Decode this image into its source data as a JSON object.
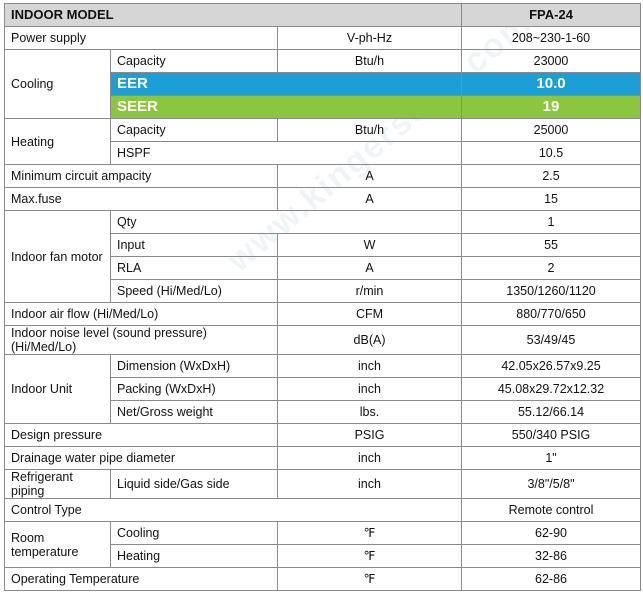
{
  "header": {
    "model_label": "INDOOR MODEL",
    "model_value": "FPA-24"
  },
  "rows": {
    "power_supply": {
      "label": "Power supply",
      "unit": "V-ph-Hz",
      "value": "208~230-1-60"
    },
    "cooling": {
      "label": "Cooling",
      "capacity": {
        "label": "Capacity",
        "unit": "Btu/h",
        "value": "23000"
      },
      "eer": {
        "label": "EER",
        "value": "10.0"
      },
      "seer": {
        "label": "SEER",
        "value": "19"
      }
    },
    "heating": {
      "label": "Heating",
      "capacity": {
        "label": "Capacity",
        "unit": "Btu/h",
        "value": "25000"
      },
      "hspf": {
        "label": "HSPF",
        "value": "10.5"
      }
    },
    "min_circuit": {
      "label": "Minimum circuit ampacity",
      "unit": "A",
      "value": "2.5"
    },
    "max_fuse": {
      "label": "Max.fuse",
      "unit": "A",
      "value": "15"
    },
    "fan_motor": {
      "label": "Indoor fan motor",
      "qty": {
        "label": "Qty",
        "value": "1"
      },
      "input": {
        "label": "Input",
        "unit": "W",
        "value": "55"
      },
      "rla": {
        "label": "RLA",
        "unit": "A",
        "value": "2"
      },
      "speed": {
        "label": "Speed (Hi/Med/Lo)",
        "unit": "r/min",
        "value": "1350/1260/1120"
      }
    },
    "air_flow": {
      "label": "Indoor air flow (Hi/Med/Lo)",
      "unit": "CFM",
      "value": "880/770/650"
    },
    "noise": {
      "label": "Indoor noise level (sound pressure) (Hi/Med/Lo)",
      "unit": "dB(A)",
      "value": "53/49/45"
    },
    "indoor_unit": {
      "label": "Indoor Unit",
      "dimension": {
        "label": "Dimension (WxDxH)",
        "unit": "inch",
        "value": "42.05x26.57x9.25"
      },
      "packing": {
        "label": "Packing (WxDxH)",
        "unit": "inch",
        "value": "45.08x29.72x12.32"
      },
      "weight": {
        "label": "Net/Gross weight",
        "unit": "lbs.",
        "value": "55.12/66.14"
      }
    },
    "design_pressure": {
      "label": "Design pressure",
      "unit": "PSIG",
      "value": "550/340 PSIG"
    },
    "drainage": {
      "label": "Drainage water pipe diameter",
      "unit": "inch",
      "value": "1\""
    },
    "refrigerant": {
      "label": "Refrigerant piping",
      "sub": "Liquid side/Gas side",
      "unit": "inch",
      "value": "3/8\"/5/8\""
    },
    "control": {
      "label": "Control Type",
      "value": "Remote control"
    },
    "room_temp": {
      "label": "Room temperature",
      "cooling": {
        "label": "Cooling",
        "unit": "℉",
        "value": "62-90"
      },
      "heating": {
        "label": "Heating",
        "unit": "℉",
        "value": "32-86"
      }
    },
    "operating_temp": {
      "label": "Operating Temperature",
      "unit": "℉",
      "value": "62-86"
    }
  },
  "watermark": "www.kingersons.com",
  "colors": {
    "header_bg": "#d6d6d6",
    "eer_bg": "#1c9fd6",
    "seer_bg": "#8cc63f",
    "border": "#8a8a8a"
  }
}
